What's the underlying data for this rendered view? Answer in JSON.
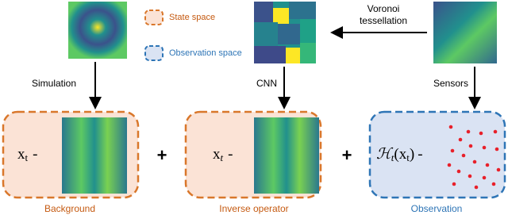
{
  "legend": {
    "state": "State space",
    "observation": "Observation space"
  },
  "edges": {
    "voronoi": [
      "Voronoi",
      "tessellation"
    ],
    "simulation": "Simulation",
    "cnn": "CNN",
    "sensors": "Sensors"
  },
  "boxes": [
    {
      "label": "Background",
      "x": "x",
      "sub": "t",
      "minus": "-"
    },
    {
      "label": "Inverse operator",
      "x": "x",
      "sub": "t",
      "minus": "-"
    },
    {
      "label": "Observation",
      "op": "ℋ",
      "sub": "t",
      "open": "(x",
      "sub2": "t",
      "close": ")",
      "minus": "-"
    }
  ],
  "plus": [
    "+",
    "+"
  ]
}
